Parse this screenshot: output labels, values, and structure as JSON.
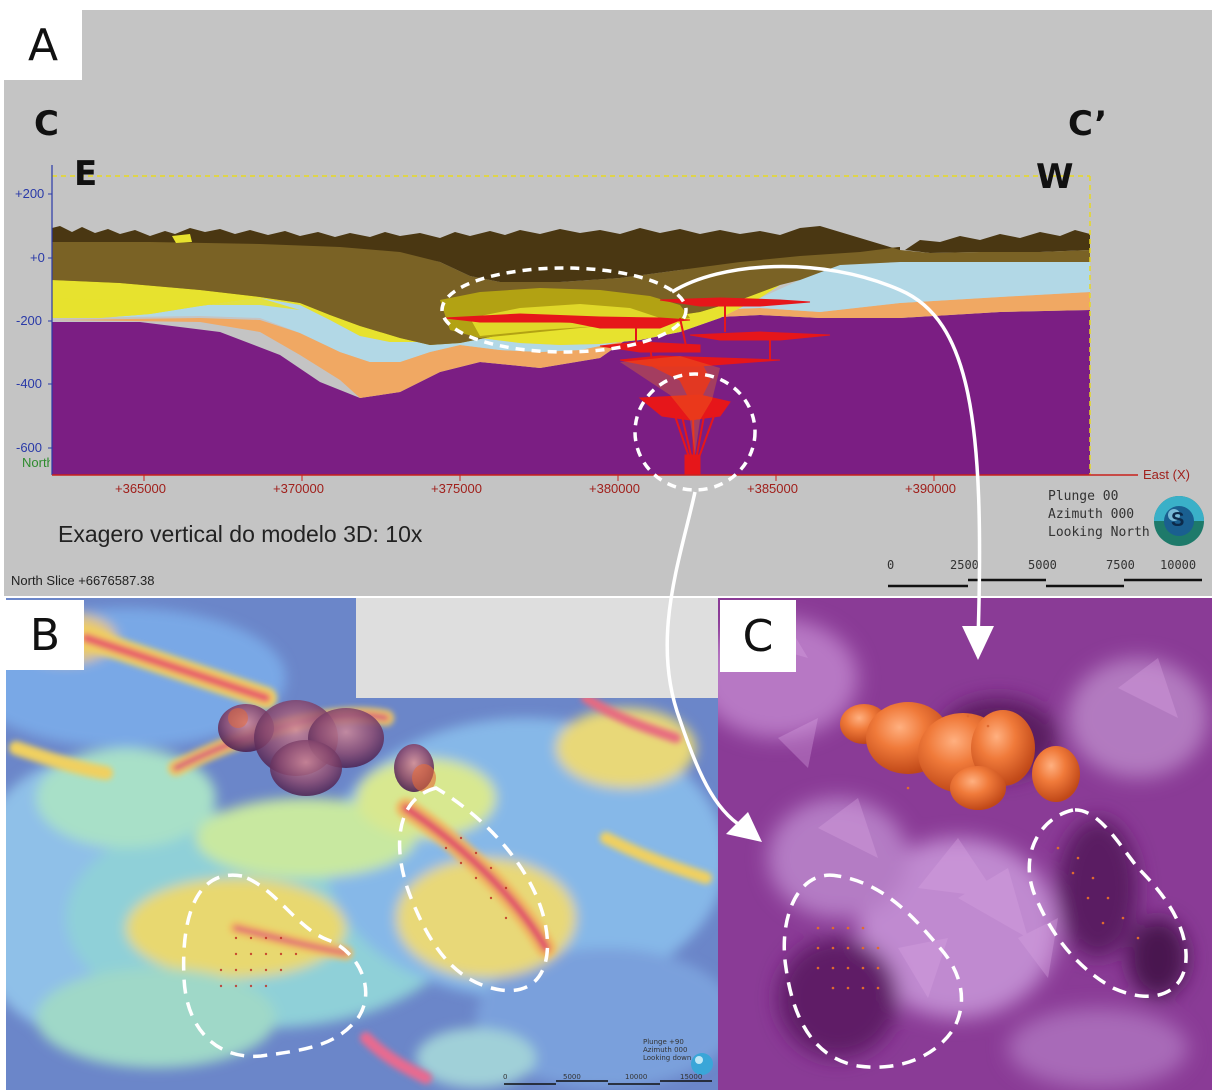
{
  "panels": {
    "a": {
      "letter": "A"
    },
    "b": {
      "letter": "B"
    },
    "c": {
      "letter": "C"
    }
  },
  "section": {
    "start_label": "C",
    "end_label": "C’",
    "left_direction": "E",
    "right_direction": "W",
    "y_ticks": [
      "+200",
      "+0",
      "-200",
      "-400",
      "-600"
    ],
    "y_axis_title": "North",
    "x_ticks": [
      "+365000",
      "+370000",
      "+375000",
      "+380000",
      "+385000",
      "+390000"
    ],
    "x_axis_title": "East (X)",
    "exaggeration_note": "Exagero vertical do modelo 3D: 10x",
    "slice_label": "North Slice +6676587.38",
    "orientation": [
      "Plunge 00",
      "Azimuth 000",
      "Looking North"
    ],
    "compass_letter": "S",
    "scale_ticks": [
      "0",
      "2500",
      "5000",
      "7500",
      "10000"
    ],
    "layer_colors": {
      "topography": "#4a3712",
      "brown": "#7a6225",
      "olive": "#b2a213",
      "yellow": "#e7e22e",
      "light_blue": "#b2d8e6",
      "orange": "#f0a863",
      "purple": "#7b1e83",
      "anomaly_red": "#e6161a"
    }
  },
  "panel_b": {
    "orientation": [
      "Plunge +90",
      "Azimuth 000",
      "Looking down"
    ],
    "scale_ticks": [
      "0",
      "5000",
      "10000",
      "15000"
    ]
  }
}
